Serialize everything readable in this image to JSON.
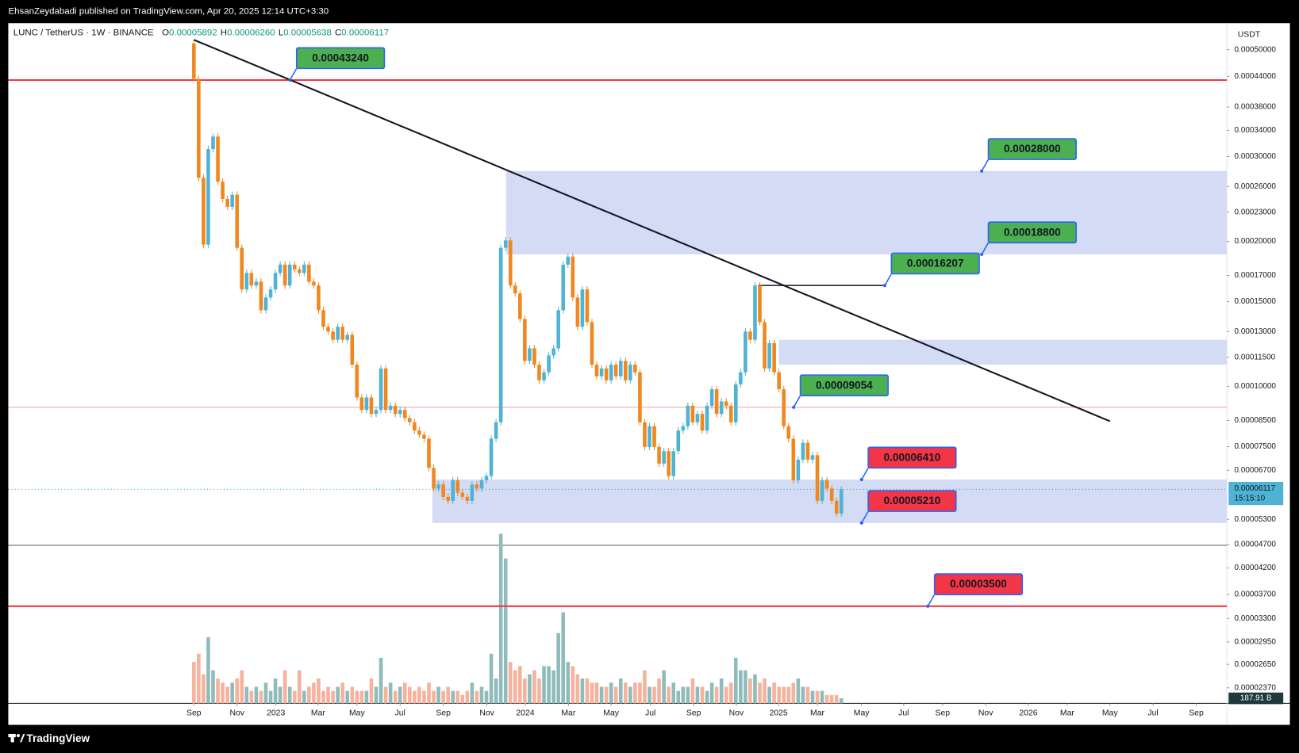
{
  "header": {
    "published": "EhsanZeydabadi published on TradingView.com, Apr 20, 2025 12:14 UTC+3:30",
    "brand": "TradingView"
  },
  "chart_data": {
    "type": "candlestick",
    "title": "LUNC / TetherUS · 1W · BINANCE",
    "ohlc": [
      {
        "name": "O",
        "value": 5.892e-05,
        "label": "0.00005892"
      },
      {
        "name": "H",
        "value": 6.26e-05,
        "label": "0.00006260"
      },
      {
        "name": "L",
        "value": 5.638e-05,
        "label": "0.00005638"
      },
      {
        "name": "C",
        "value": 6.117e-05,
        "label": "0.00006117"
      }
    ],
    "currency": "USDT",
    "countdown": "15:15:10",
    "log_scale": true,
    "first_open": 0.000515,
    "up_color": "#4fb3d4",
    "down_color": "#f0871f",
    "volume_up_color": "#8fbcbb",
    "volume_down_color": "#f5b29c",
    "series": [
      {
        "name": "LUNC / TetherUS",
        "values": [
          0.000435,
          0.000271,
          0.000197,
          0.000311,
          0.00033,
          0.000266,
          0.000245,
          0.000236,
          0.00025,
          0.000194,
          0.000159,
          0.000172,
          0.000162,
          0.000165,
          0.000144,
          0.000153,
          0.000159,
          0.000172,
          0.000179,
          0.000162,
          0.000179,
          0.000175,
          0.000172,
          0.000179,
          0.000165,
          0.000162,
          0.000144,
          0.000133,
          0.00013,
          0.000125,
          0.000133,
          0.000125,
          0.000128,
          0.000111,
          9.49e-05,
          8.94e-05,
          9.49e-05,
          8.77e-05,
          8.94e-05,
          0.000109,
          8.94e-05,
          9.12e-05,
          8.77e-05,
          8.94e-05,
          8.6e-05,
          8.43e-05,
          8.1e-05,
          7.94e-05,
          7.79e-05,
          6.78e-05,
          6.14e-05,
          6.26e-05,
          5.9e-05,
          5.79e-05,
          6.39e-05,
          6.02e-05,
          5.9e-05,
          5.79e-05,
          6.26e-05,
          6.14e-05,
          6.39e-05,
          6.52e-05,
          7.79e-05,
          8.43e-05,
          0.000194,
          0.000201,
          0.000162,
          0.000156,
          0.000138,
          0.000113,
          0.00012,
          0.000111,
          0.000103,
          0.000107,
          0.000116,
          0.00012,
          0.000144,
          0.000179,
          0.000186,
          0.000153,
          0.000133,
          0.000159,
          0.000136,
          0.000111,
          0.000105,
          0.000109,
          0.000103,
          0.000111,
          0.000105,
          0.000113,
          0.000103,
          0.000111,
          0.000107,
          8.43e-05,
          7.49e-05,
          8.27e-05,
          7.49e-05,
          6.92e-05,
          7.34e-05,
          6.52e-05,
          7.34e-05,
          8.1e-05,
          8.27e-05,
          9.12e-05,
          8.43e-05,
          8.77e-05,
          8.1e-05,
          9.12e-05,
          9.87e-05,
          8.77e-05,
          9.31e-05,
          9.12e-05,
          8.43e-05,
          0.000101,
          0.000107,
          0.00013,
          0.000125,
          0.000162,
          0.000136,
          0.000109,
          0.000123,
          0.000107,
          9.87e-05,
          8.27e-05,
          7.79e-05,
          6.39e-05,
          7.05e-05,
          7.64e-05,
          7.05e-05,
          7.2e-05,
          5.79e-05,
          6.39e-05,
          6.14e-05,
          5.79e-05,
          5.45e-05,
          6.117e-05
        ]
      }
    ],
    "volume": [
      1550,
      1860,
      1085,
      2480,
      1240,
      930,
      775,
      620,
      775,
      930,
      1240,
      620,
      465,
      620,
      465,
      775,
      465,
      930,
      620,
      1240,
      620,
      465,
      1240,
      465,
      620,
      775,
      930,
      465,
      620,
      465,
      620,
      775,
      465,
      620,
      465,
      465,
      465,
      930,
      620,
      1705,
      620,
      775,
      465,
      620,
      775,
      620,
      465,
      620,
      465,
      775,
      465,
      620,
      465,
      620,
      465,
      465,
      310,
      465,
      775,
      465,
      620,
      465,
      1860,
      930,
      6355,
      5425,
      1550,
      1240,
      1395,
      930,
      1085,
      1240,
      930,
      1395,
      1395,
      1240,
      2635,
      3410,
      1550,
      1395,
      1085,
      930,
      930,
      775,
      775,
      620,
      620,
      775,
      620,
      930,
      775,
      620,
      775,
      775,
      1240,
      620,
      620,
      930,
      1240,
      620,
      775,
      465,
      620,
      620,
      930,
      620,
      620,
      465,
      775,
      620,
      930,
      620,
      775,
      1705,
      1240,
      1240,
      930,
      1085,
      775,
      930,
      620,
      775,
      620,
      620,
      620,
      775,
      930,
      620,
      620,
      465,
      465,
      465,
      310,
      310,
      310,
      187.91
    ],
    "volume_label": {
      "value": 187.91,
      "label": "187.91 B"
    },
    "vlim": [
      0,
      25420
    ],
    "xlim": [
      -38.7,
      215.4
    ],
    "xticks": [
      {
        "value": 0,
        "label": "Sep"
      },
      {
        "value": 9,
        "label": "Nov"
      },
      {
        "value": 17.1,
        "label": "2023"
      },
      {
        "value": 25.9,
        "label": "Mar"
      },
      {
        "value": 34,
        "label": "May"
      },
      {
        "value": 43,
        "label": "Jul"
      },
      {
        "value": 52,
        "label": "Sep"
      },
      {
        "value": 61.1,
        "label": "Nov"
      },
      {
        "value": 69.1,
        "label": "2024"
      },
      {
        "value": 78.1,
        "label": "Mar"
      },
      {
        "value": 87,
        "label": "May"
      },
      {
        "value": 95.2,
        "label": "Jul"
      },
      {
        "value": 104.2,
        "label": "Sep"
      },
      {
        "value": 113.1,
        "label": "Nov"
      },
      {
        "value": 121.9,
        "label": "2025"
      },
      {
        "value": 130,
        "label": "Mar"
      },
      {
        "value": 139.2,
        "label": "May"
      },
      {
        "value": 148,
        "label": "Jul"
      },
      {
        "value": 156.1,
        "label": "Sep"
      },
      {
        "value": 165.1,
        "label": "Nov"
      },
      {
        "value": 174,
        "label": "2026"
      },
      {
        "value": 182.1,
        "label": "Mar"
      },
      {
        "value": 191,
        "label": "May"
      },
      {
        "value": 200,
        "label": "Jul"
      },
      {
        "value": 209,
        "label": "Sep"
      }
    ],
    "ylim": [
      2.2e-05,
      0.000563
    ],
    "yticks": [
      {
        "value": 0.0005,
        "label": "0.00050000"
      },
      {
        "value": 0.00044,
        "label": "0.00044000"
      },
      {
        "value": 0.00038,
        "label": "0.00038000"
      },
      {
        "value": 0.00034,
        "label": "0.00034000"
      },
      {
        "value": 0.0003,
        "label": "0.00030000"
      },
      {
        "value": 0.00026,
        "label": "0.00026000"
      },
      {
        "value": 0.00023,
        "label": "0.00023000"
      },
      {
        "value": 0.0002,
        "label": "0.00020000"
      },
      {
        "value": 0.00017,
        "label": "0.00017000"
      },
      {
        "value": 0.00015,
        "label": "0.00015000"
      },
      {
        "value": 0.00013,
        "label": "0.00013000"
      },
      {
        "value": 0.000115,
        "label": "0.00011500"
      },
      {
        "value": 0.0001,
        "label": "0.00010000"
      },
      {
        "value": 8.5e-05,
        "label": "0.00008500"
      },
      {
        "value": 7.5e-05,
        "label": "0.00007500"
      },
      {
        "value": 6.7e-05,
        "label": "0.00006700"
      },
      {
        "value": 5.3e-05,
        "label": "0.00005300"
      },
      {
        "value": 4.7e-05,
        "label": "0.00004700"
      },
      {
        "value": 4.2e-05,
        "label": "0.00004200"
      },
      {
        "value": 3.7e-05,
        "label": "0.00003700"
      },
      {
        "value": 3.3e-05,
        "label": "0.00003300"
      },
      {
        "value": 2.95e-05,
        "label": "0.00002950"
      },
      {
        "value": 2.65e-05,
        "label": "0.00002650"
      },
      {
        "value": 2.37e-05,
        "label": "0.00002370"
      }
    ],
    "zones": [
      [
        0.000188,
        0.00028
      ],
      [
        0.000111,
        0.000125
      ],
      [
        5.21e-05,
        6.41e-05
      ]
    ],
    "trendline": {
      "x": [
        0,
        191
      ],
      "y": [
        0.000524,
        8.47e-05
      ]
    },
    "annotations": [
      {
        "value": 0.0004324,
        "label": "0.00043240",
        "color": "#4caf50"
      },
      {
        "value": 0.00028,
        "label": "0.00028000",
        "color": "#4caf50"
      },
      {
        "value": 0.000188,
        "label": "0.00018800",
        "color": "#4caf50"
      },
      {
        "value": 0.00016207,
        "label": "0.00016207",
        "color": "#4caf50"
      },
      {
        "value": 9.054e-05,
        "label": "0.00009054",
        "color": "#4caf50"
      },
      {
        "value": 6.41e-05,
        "label": "0.00006410",
        "color": "#f23645"
      },
      {
        "value": 5.21e-05,
        "label": "0.00005210",
        "color": "#f23645"
      },
      {
        "value": 3.5e-05,
        "label": "0.00003500",
        "color": "#f23645"
      }
    ]
  }
}
